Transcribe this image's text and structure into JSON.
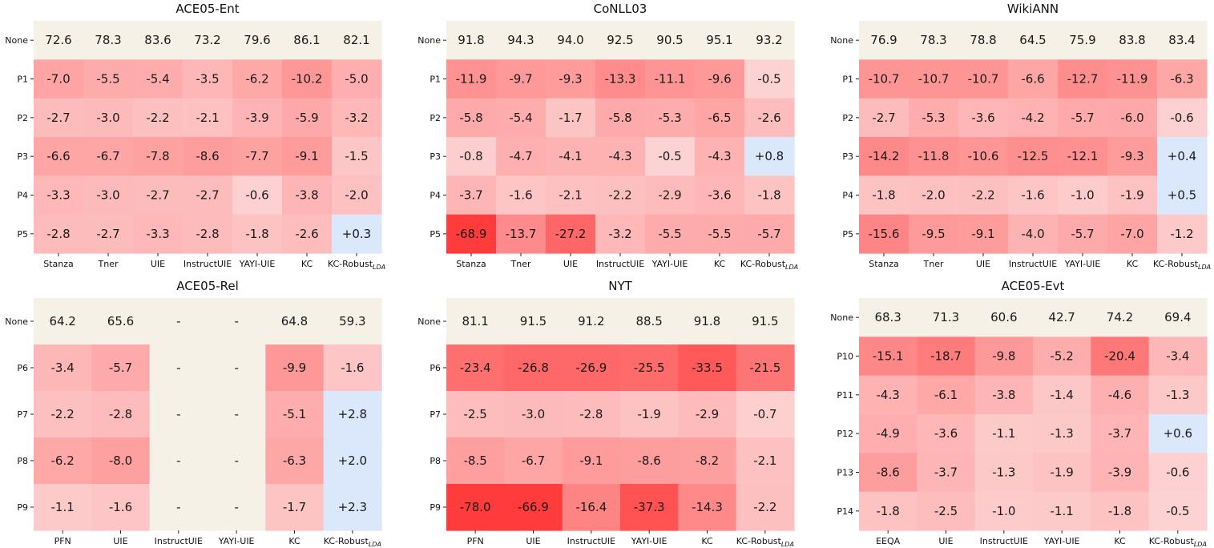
{
  "colors": {
    "baseline": "#f6f1e6",
    "negative_max": "#ff3b3b",
    "negative_light": "#fde3e3",
    "positive": "#dbe7fb"
  },
  "chart_data": [
    {
      "type": "heatmap",
      "title": "ACE05-Ent",
      "rows": [
        "None",
        "P1",
        "P2",
        "P3",
        "P4",
        "P5"
      ],
      "columns": [
        "Stanza",
        "Tner",
        "UIE",
        "InstructUIE",
        "YAYI-UIE",
        "KC",
        "KC-Robust"
      ],
      "columns_sub": [
        "",
        "",
        "",
        "",
        "",
        "",
        "LDA"
      ],
      "values": [
        [
          "72.6",
          "78.3",
          "83.6",
          "73.2",
          "79.6",
          "86.1",
          "82.1"
        ],
        [
          "-7.0",
          "-5.5",
          "-5.4",
          "-3.5",
          "-6.2",
          "-10.2",
          "-5.0"
        ],
        [
          "-2.7",
          "-3.0",
          "-2.2",
          "-2.1",
          "-3.9",
          "-5.9",
          "-3.2"
        ],
        [
          "-6.6",
          "-6.7",
          "-7.8",
          "-8.6",
          "-7.7",
          "-9.1",
          "-1.5"
        ],
        [
          "-3.3",
          "-3.0",
          "-2.7",
          "-2.7",
          "-0.6",
          "-3.8",
          "-2.0"
        ],
        [
          "-2.8",
          "-2.7",
          "-3.3",
          "-2.8",
          "-1.8",
          "-2.6",
          "+0.3"
        ]
      ]
    },
    {
      "type": "heatmap",
      "title": "CoNLL03",
      "rows": [
        "None",
        "P1",
        "P2",
        "P3",
        "P4",
        "P5"
      ],
      "columns": [
        "Stanza",
        "Tner",
        "UIE",
        "InstructUIE",
        "YAYI-UIE",
        "KC",
        "KC-Robust"
      ],
      "columns_sub": [
        "",
        "",
        "",
        "",
        "",
        "",
        "LDA"
      ],
      "values": [
        [
          "91.8",
          "94.3",
          "94.0",
          "92.5",
          "90.5",
          "95.1",
          "93.2"
        ],
        [
          "-11.9",
          "-9.7",
          "-9.3",
          "-13.3",
          "-11.1",
          "-9.6",
          "-0.5"
        ],
        [
          "-5.8",
          "-5.4",
          "-1.7",
          "-5.8",
          "-5.3",
          "-6.5",
          "-2.6"
        ],
        [
          "-0.8",
          "-4.7",
          "-4.1",
          "-4.3",
          "-0.5",
          "-4.3",
          "+0.8"
        ],
        [
          "-3.7",
          "-1.6",
          "-2.1",
          "-2.2",
          "-2.9",
          "-3.6",
          "-1.8"
        ],
        [
          "-68.9",
          "-13.7",
          "-27.2",
          "-3.2",
          "-5.5",
          "-5.5",
          "-5.7"
        ]
      ]
    },
    {
      "type": "heatmap",
      "title": "WikiANN",
      "rows": [
        "None",
        "P1",
        "P2",
        "P3",
        "P4",
        "P5"
      ],
      "columns": [
        "Stanza",
        "Tner",
        "UIE",
        "InstructUIE",
        "YAYI-UIE",
        "KC",
        "KC-Robust"
      ],
      "columns_sub": [
        "",
        "",
        "",
        "",
        "",
        "",
        "LDA"
      ],
      "values": [
        [
          "76.9",
          "78.3",
          "78.8",
          "64.5",
          "75.9",
          "83.8",
          "83.4"
        ],
        [
          "-10.7",
          "-10.7",
          "-10.7",
          "-6.6",
          "-12.7",
          "-11.9",
          "-6.3"
        ],
        [
          "-2.7",
          "-5.3",
          "-3.6",
          "-4.2",
          "-5.7",
          "-6.0",
          "-0.6"
        ],
        [
          "-14.2",
          "-11.8",
          "-10.6",
          "-12.5",
          "-12.1",
          "-9.3",
          "+0.4"
        ],
        [
          "-1.8",
          "-2.0",
          "-2.2",
          "-1.6",
          "-1.0",
          "-1.9",
          "+0.5"
        ],
        [
          "-15.6",
          "-9.5",
          "-9.1",
          "-4.0",
          "-5.7",
          "-7.0",
          "-1.2"
        ]
      ]
    },
    {
      "type": "heatmap",
      "title": "ACE05-Rel",
      "rows": [
        "None",
        "P6",
        "P7",
        "P8",
        "P9"
      ],
      "columns": [
        "PFN",
        "UIE",
        "InstructUIE",
        "YAYI-UIE",
        "KC",
        "KC-Robust"
      ],
      "columns_sub": [
        "",
        "",
        "",
        "",
        "",
        "LDA"
      ],
      "values": [
        [
          "64.2",
          "65.6",
          "-",
          "-",
          "64.8",
          "59.3"
        ],
        [
          "-3.4",
          "-5.7",
          "-",
          "-",
          "-9.9",
          "-1.6"
        ],
        [
          "-2.2",
          "-2.8",
          "-",
          "-",
          "-5.1",
          "+2.8"
        ],
        [
          "-6.2",
          "-8.0",
          "-",
          "-",
          "-6.3",
          "+2.0"
        ],
        [
          "-1.1",
          "-1.6",
          "-",
          "-",
          "-1.7",
          "+2.3"
        ]
      ]
    },
    {
      "type": "heatmap",
      "title": "NYT",
      "rows": [
        "None",
        "P6",
        "P7",
        "P8",
        "P9"
      ],
      "columns": [
        "PFN",
        "UIE",
        "InstructUIE",
        "YAYI-UIE",
        "KC",
        "KC-Robust"
      ],
      "columns_sub": [
        "",
        "",
        "",
        "",
        "",
        "LDA"
      ],
      "values": [
        [
          "81.1",
          "91.5",
          "91.2",
          "88.5",
          "91.8",
          "91.5"
        ],
        [
          "-23.4",
          "-26.8",
          "-26.9",
          "-25.5",
          "-33.5",
          "-21.5"
        ],
        [
          "-2.5",
          "-3.0",
          "-2.8",
          "-1.9",
          "-2.9",
          "-0.7"
        ],
        [
          "-8.5",
          "-6.7",
          "-9.1",
          "-8.6",
          "-8.2",
          "-2.1"
        ],
        [
          "-78.0",
          "-66.9",
          "-16.4",
          "-37.3",
          "-14.3",
          "-2.2"
        ]
      ]
    },
    {
      "type": "heatmap",
      "title": "ACE05-Evt",
      "rows": [
        "None",
        "P10",
        "P11",
        "P12",
        "P13",
        "P14"
      ],
      "columns": [
        "EEQA",
        "UIE",
        "InstructUIE",
        "YAYI-UIE",
        "KC",
        "KC-Robust"
      ],
      "columns_sub": [
        "",
        "",
        "",
        "",
        "",
        "LDA"
      ],
      "values": [
        [
          "68.3",
          "71.3",
          "60.6",
          "42.7",
          "74.2",
          "69.4"
        ],
        [
          "-15.1",
          "-18.7",
          "-9.8",
          "-5.2",
          "-20.4",
          "-3.4"
        ],
        [
          "-4.3",
          "-6.1",
          "-3.8",
          "-1.4",
          "-4.6",
          "-1.3"
        ],
        [
          "-4.9",
          "-3.6",
          "-1.1",
          "-1.3",
          "-3.7",
          "+0.6"
        ],
        [
          "-8.6",
          "-3.7",
          "-1.3",
          "-1.9",
          "-3.9",
          "-0.6"
        ],
        [
          "-1.8",
          "-2.5",
          "-1.0",
          "-1.1",
          "-1.8",
          "-0.5"
        ]
      ]
    }
  ]
}
